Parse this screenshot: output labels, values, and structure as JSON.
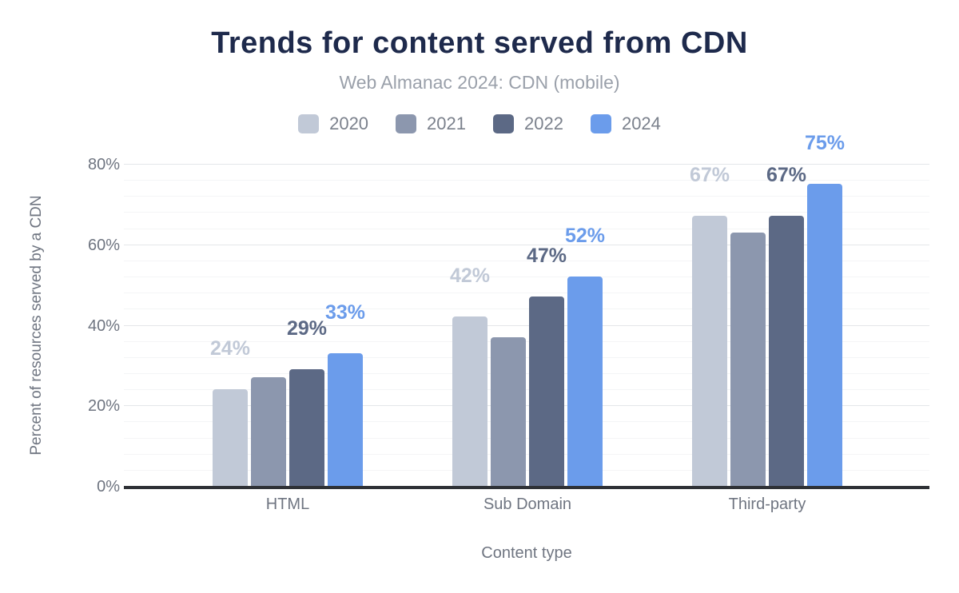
{
  "header": {
    "title": "Trends for content served from CDN",
    "subtitle": "Web Almanac 2024: CDN (mobile)"
  },
  "colors": {
    "title_text": "#1e2a4c",
    "subtitle_text": "#9aa0aa",
    "axis_text": "#6f7581",
    "legend_text": "#7b818c",
    "axis_line": "#2e3136",
    "series_2020": "#c1c9d7",
    "series_2021": "#8c97ae",
    "series_2022": "#5c6985",
    "series_2024": "#6b9ceb"
  },
  "chart_data": {
    "type": "bar",
    "title": "Trends for content served from CDN",
    "subtitle": "Web Almanac 2024: CDN (mobile)",
    "xlabel": "Content type",
    "ylabel": "Percent of resources served by a CDN",
    "categories": [
      "HTML",
      "Sub Domain",
      "Third-party"
    ],
    "series": [
      {
        "name": "2020",
        "color": "#c1c9d7",
        "values": [
          24,
          42,
          67
        ],
        "data_labels": [
          "24%",
          "42%",
          "67%"
        ],
        "show_labels": true
      },
      {
        "name": "2021",
        "color": "#8c97ae",
        "values": [
          27,
          37,
          63
        ],
        "data_labels": null,
        "show_labels": false
      },
      {
        "name": "2022",
        "color": "#5c6985",
        "values": [
          29,
          47,
          67
        ],
        "data_labels": [
          "29%",
          "47%",
          "67%"
        ],
        "show_labels": true
      },
      {
        "name": "2024",
        "color": "#6b9ceb",
        "values": [
          33,
          52,
          75
        ],
        "data_labels": [
          "33%",
          "52%",
          "75%"
        ],
        "show_labels": true
      }
    ],
    "ylim": [
      0,
      80
    ],
    "yticks": [
      0,
      20,
      40,
      60,
      80
    ],
    "ytick_labels": [
      "0%",
      "20%",
      "40%",
      "60%",
      "80%"
    ],
    "grid": {
      "major_step": 20,
      "minor_step": 4,
      "enabled": true
    },
    "legend_position": "top"
  }
}
